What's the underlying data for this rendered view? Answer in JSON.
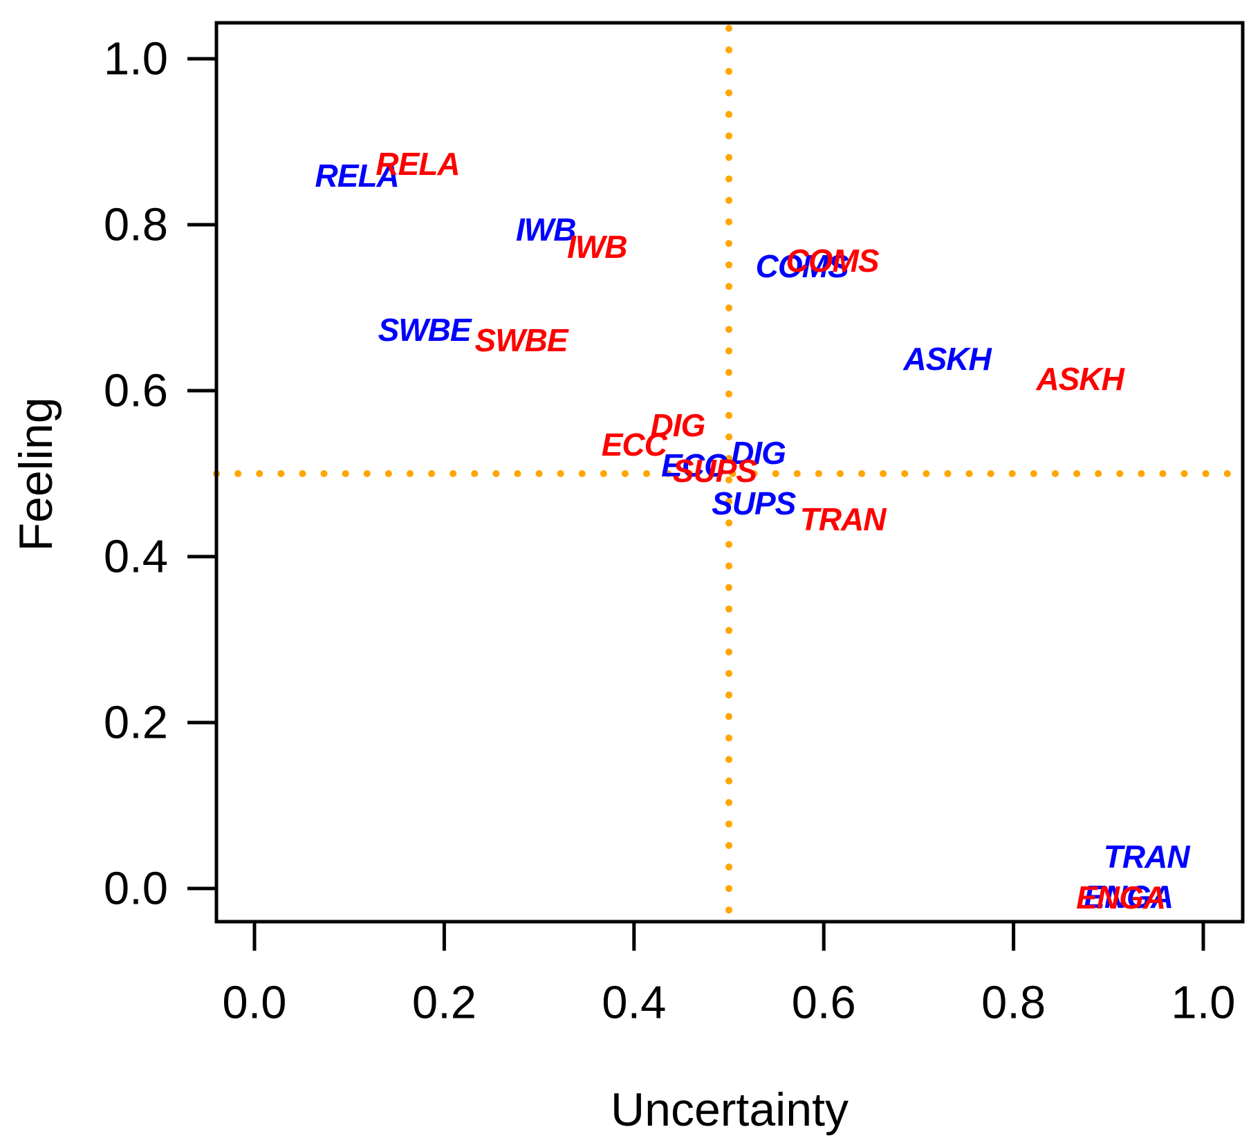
{
  "chart_data": {
    "type": "scatter",
    "title": "",
    "xlabel": "Uncertainty",
    "ylabel": "Feeling",
    "xlim": [
      0,
      1
    ],
    "ylim": [
      0,
      1
    ],
    "grid": false,
    "point_style": "text-labels",
    "x_ticks": [
      "0.0",
      "0.2",
      "0.4",
      "0.6",
      "0.8",
      "1.0"
    ],
    "x_tick_values": [
      0.0,
      0.2,
      0.4,
      0.6,
      0.8,
      1.0
    ],
    "y_ticks": [
      "0.0",
      "0.2",
      "0.4",
      "0.6",
      "0.8",
      "1.0"
    ],
    "y_tick_values": [
      0.0,
      0.2,
      0.4,
      0.6,
      0.8,
      1.0
    ],
    "reference_lines": {
      "vertical_x": 0.5,
      "horizontal_y": 0.5,
      "color": "#FFA500",
      "style": "dotted"
    },
    "series": [
      {
        "name": "blue",
        "color": "#0000FF",
        "points": [
          {
            "label": "RELA",
            "x": 0.108,
            "y": 0.859
          },
          {
            "label": "IWB",
            "x": 0.307,
            "y": 0.794
          },
          {
            "label": "SWBE",
            "x": 0.179,
            "y": 0.673
          },
          {
            "label": "COMS",
            "x": 0.577,
            "y": 0.75
          },
          {
            "label": "ASKH",
            "x": 0.73,
            "y": 0.638
          },
          {
            "label": "DIG",
            "x": 0.531,
            "y": 0.525
          },
          {
            "label": "ECC",
            "x": 0.463,
            "y": 0.51
          },
          {
            "label": "SUPS",
            "x": 0.526,
            "y": 0.464
          },
          {
            "label": "TRAN",
            "x": 0.94,
            "y": 0.038
          },
          {
            "label": "ENGA",
            "x": 0.921,
            "y": -0.01
          }
        ]
      },
      {
        "name": "red",
        "color": "#FF0000",
        "points": [
          {
            "label": "RELA",
            "x": 0.172,
            "y": 0.873
          },
          {
            "label": "IWB",
            "x": 0.361,
            "y": 0.773
          },
          {
            "label": "SWBE",
            "x": 0.281,
            "y": 0.661
          },
          {
            "label": "COMS",
            "x": 0.609,
            "y": 0.757
          },
          {
            "label": "ASKH",
            "x": 0.87,
            "y": 0.614
          },
          {
            "label": "DIG",
            "x": 0.446,
            "y": 0.558
          },
          {
            "label": "ECC",
            "x": 0.4,
            "y": 0.535
          },
          {
            "label": "SUPS",
            "x": 0.485,
            "y": 0.503
          },
          {
            "label": "TRAN",
            "x": 0.62,
            "y": 0.445
          },
          {
            "label": "ENGA",
            "x": 0.913,
            "y": -0.011
          }
        ]
      }
    ]
  },
  "colors": {
    "background": "#FFFFFF",
    "axis": "#000000",
    "reference": "#FFA500",
    "series_blue": "#0000FF",
    "series_red": "#FF0000"
  }
}
